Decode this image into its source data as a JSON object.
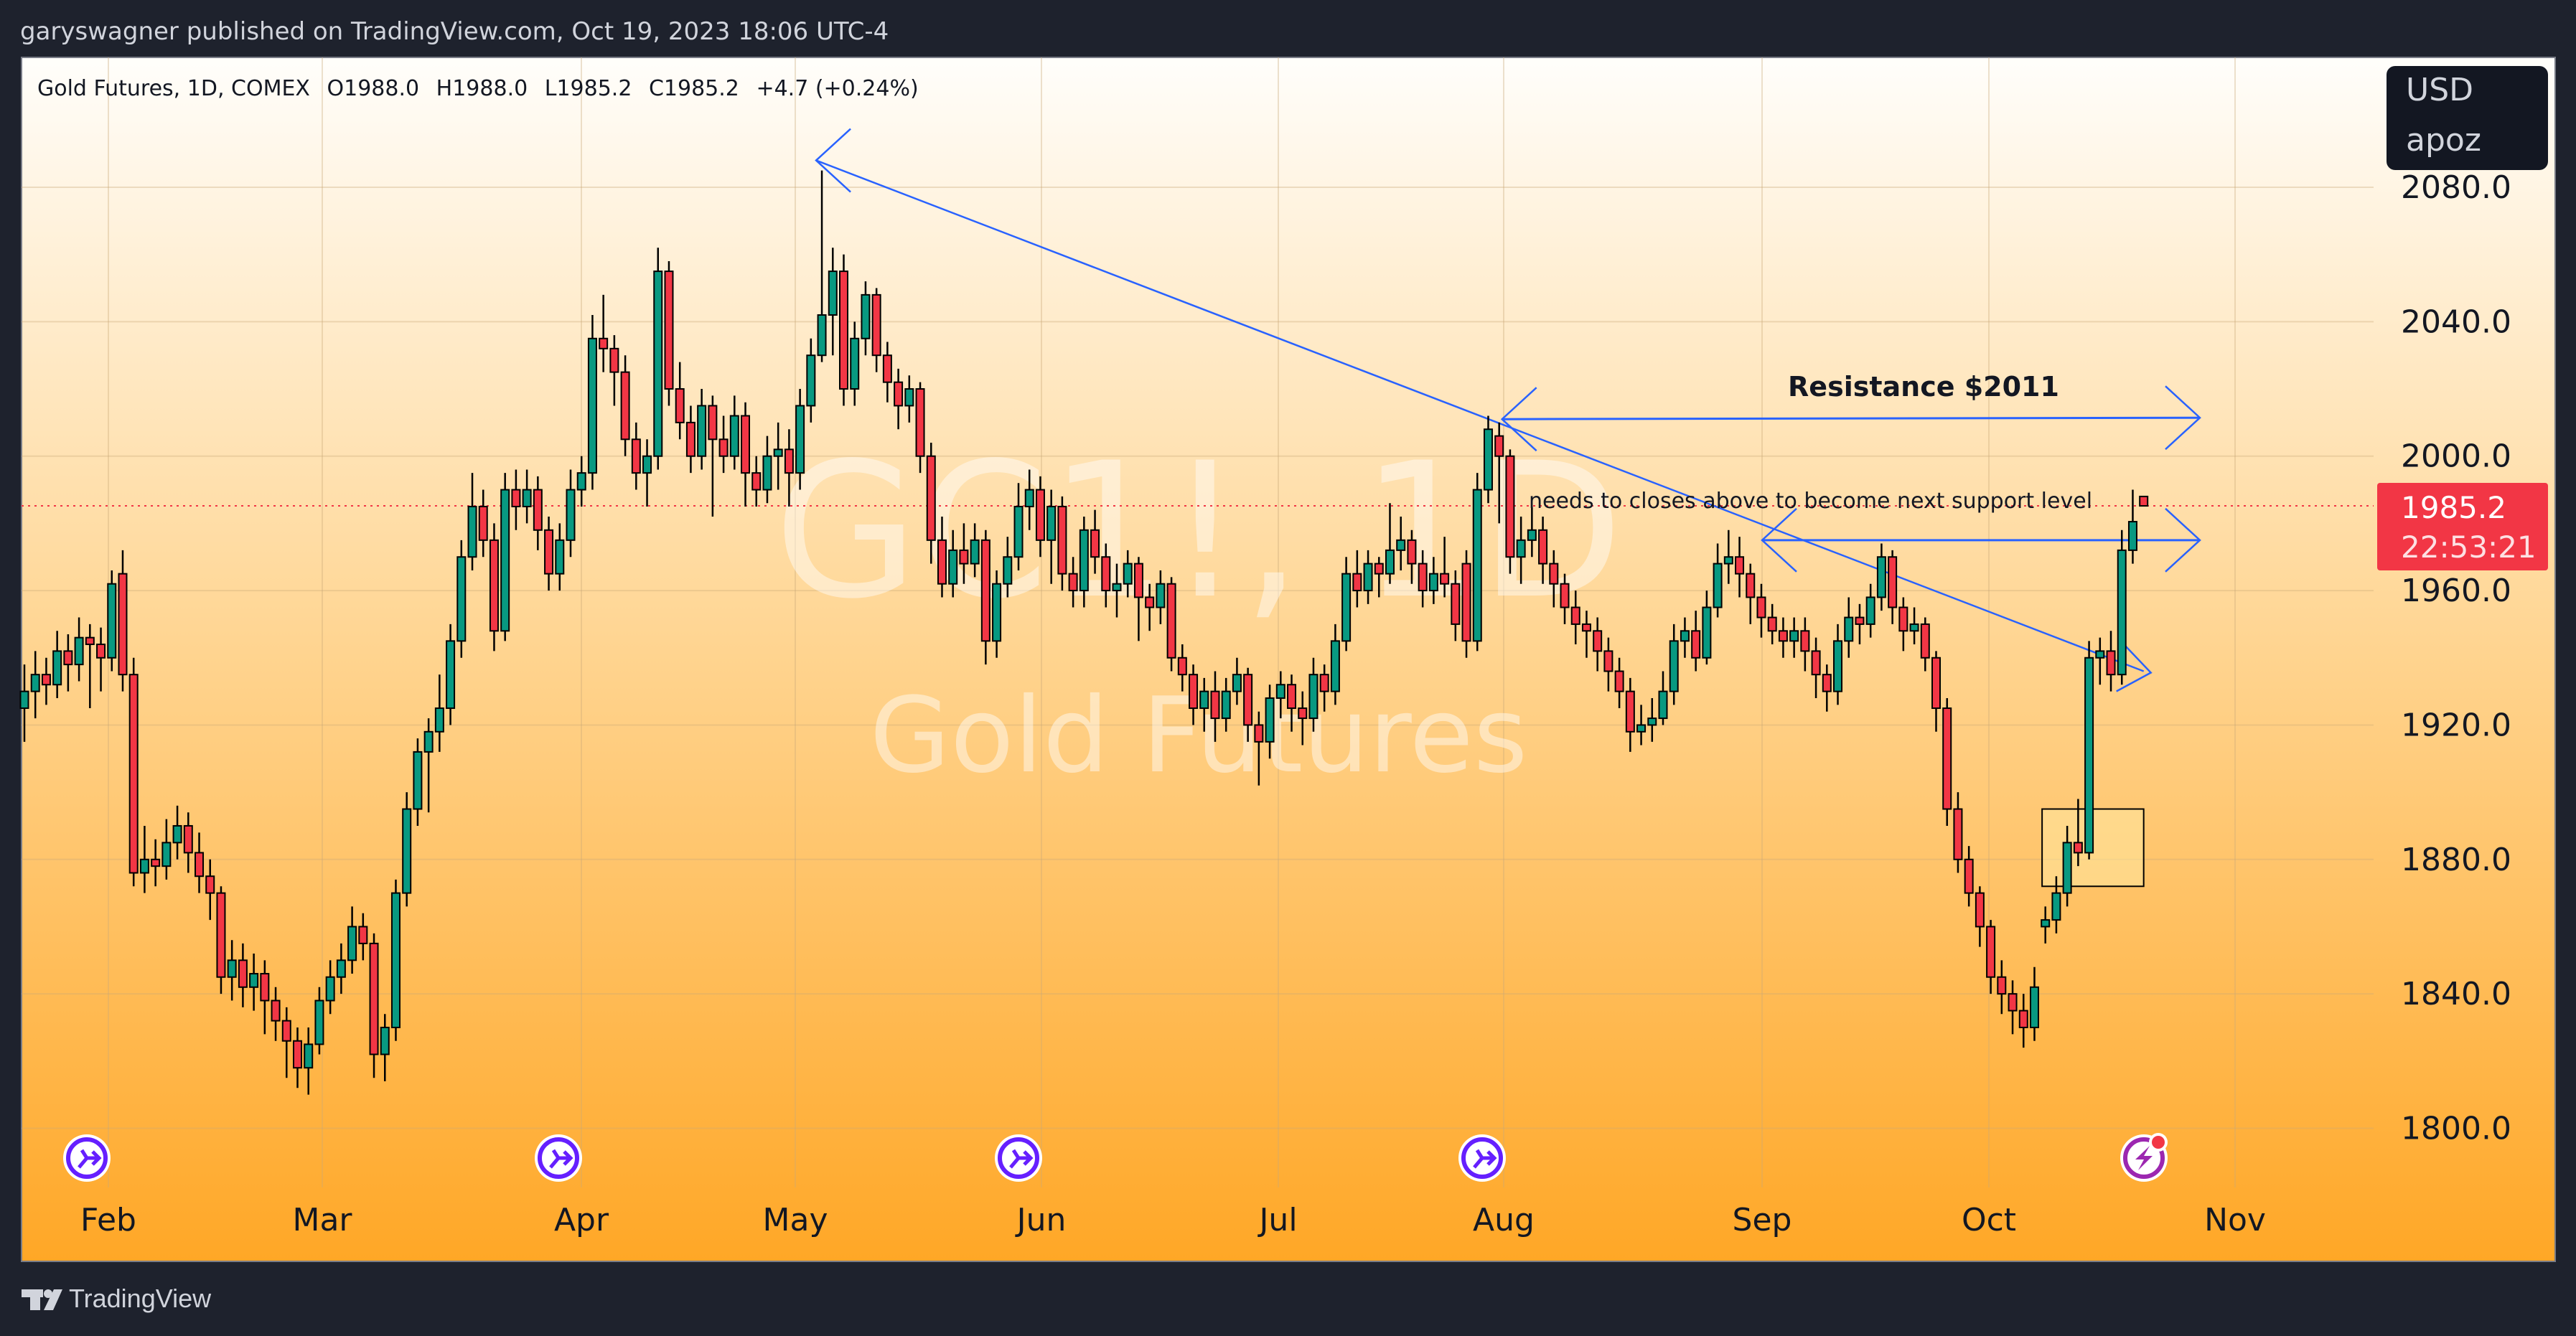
{
  "header": {
    "published_by": "garyswagner published on TradingView.com, Oct 19, 2023 18:06 UTC-4"
  },
  "legend": {
    "symbol": "Gold Futures, 1D, COMEX",
    "open": "O1988.0",
    "high": "H1988.0",
    "low": "L1985.2",
    "close": "C1985.2",
    "change": "+4.7 (+0.24%)"
  },
  "currency_box": {
    "currency": "USD",
    "unit": "apoz"
  },
  "price_label": {
    "price": "1985.2",
    "countdown": "22:53:21",
    "color": "#f23645"
  },
  "watermark": {
    "ticker": "GC1!, 1D",
    "name": "Gold Futures"
  },
  "annotations": {
    "resistance": "Resistance $2011",
    "note": "needs to closes above to become next support level",
    "line_color": "#2962ff"
  },
  "footer": {
    "brand": "TradingView"
  },
  "event_icons": [
    "dividend-arrow-icon",
    "dividend-arrow-icon",
    "dividend-arrow-icon",
    "dividend-arrow-icon",
    "earnings-lightning-icon"
  ],
  "chart_data": {
    "type": "candlestick",
    "title": "Gold Futures, 1D, COMEX",
    "up_color": "#089981",
    "down_color": "#f23645",
    "y_ticks": [
      "2080.0",
      "2040.0",
      "2000.0",
      "1960.0",
      "1920.0",
      "1880.0",
      "1840.0",
      "1800.0"
    ],
    "ylim": [
      1780,
      2100
    ],
    "x_ticks": [
      "Feb",
      "Mar",
      "Apr",
      "May",
      "Jun",
      "Jul",
      "Aug",
      "Sep",
      "Oct",
      "Nov"
    ],
    "last_price": 1985.2,
    "resistance_level": 2011,
    "grid": true,
    "ohlc": [
      [
        1925,
        1938,
        1915,
        1930
      ],
      [
        1930,
        1942,
        1922,
        1935
      ],
      [
        1935,
        1940,
        1926,
        1932
      ],
      [
        1932,
        1948,
        1928,
        1942
      ],
      [
        1942,
        1947,
        1930,
        1938
      ],
      [
        1938,
        1952,
        1933,
        1946
      ],
      [
        1946,
        1950,
        1925,
        1944
      ],
      [
        1944,
        1949,
        1930,
        1940
      ],
      [
        1940,
        1966,
        1936,
        1962
      ],
      [
        1965,
        1972,
        1930,
        1935
      ],
      [
        1935,
        1940,
        1872,
        1876
      ],
      [
        1876,
        1890,
        1870,
        1880
      ],
      [
        1880,
        1886,
        1872,
        1878
      ],
      [
        1878,
        1892,
        1874,
        1885
      ],
      [
        1885,
        1896,
        1880,
        1890
      ],
      [
        1890,
        1894,
        1876,
        1882
      ],
      [
        1882,
        1888,
        1870,
        1875
      ],
      [
        1875,
        1880,
        1862,
        1870
      ],
      [
        1870,
        1872,
        1840,
        1845
      ],
      [
        1845,
        1856,
        1838,
        1850
      ],
      [
        1850,
        1855,
        1836,
        1842
      ],
      [
        1842,
        1852,
        1835,
        1846
      ],
      [
        1846,
        1850,
        1828,
        1838
      ],
      [
        1838,
        1842,
        1826,
        1832
      ],
      [
        1832,
        1836,
        1815,
        1826
      ],
      [
        1826,
        1830,
        1812,
        1818
      ],
      [
        1818,
        1830,
        1810,
        1825
      ],
      [
        1825,
        1842,
        1822,
        1838
      ],
      [
        1838,
        1850,
        1834,
        1845
      ],
      [
        1845,
        1855,
        1840,
        1850
      ],
      [
        1850,
        1866,
        1846,
        1860
      ],
      [
        1860,
        1864,
        1850,
        1855
      ],
      [
        1855,
        1858,
        1815,
        1822
      ],
      [
        1822,
        1834,
        1814,
        1830
      ],
      [
        1830,
        1874,
        1826,
        1870
      ],
      [
        1870,
        1900,
        1866,
        1895
      ],
      [
        1895,
        1916,
        1890,
        1912
      ],
      [
        1912,
        1922,
        1894,
        1918
      ],
      [
        1918,
        1935,
        1912,
        1925
      ],
      [
        1925,
        1950,
        1920,
        1945
      ],
      [
        1945,
        1975,
        1940,
        1970
      ],
      [
        1970,
        1995,
        1966,
        1985
      ],
      [
        1985,
        1990,
        1970,
        1975
      ],
      [
        1975,
        1980,
        1942,
        1948
      ],
      [
        1948,
        1995,
        1945,
        1990
      ],
      [
        1990,
        1996,
        1978,
        1985
      ],
      [
        1985,
        1996,
        1980,
        1990
      ],
      [
        1990,
        1994,
        1972,
        1978
      ],
      [
        1978,
        1982,
        1960,
        1965
      ],
      [
        1965,
        1980,
        1960,
        1975
      ],
      [
        1975,
        1996,
        1970,
        1990
      ],
      [
        1990,
        2000,
        1985,
        1995
      ],
      [
        1995,
        2042,
        1990,
        2035
      ],
      [
        2035,
        2048,
        2025,
        2032
      ],
      [
        2032,
        2036,
        2015,
        2025
      ],
      [
        2025,
        2030,
        2000,
        2005
      ],
      [
        2005,
        2010,
        1990,
        1995
      ],
      [
        1995,
        2005,
        1985,
        2000
      ],
      [
        2000,
        2062,
        1996,
        2055
      ],
      [
        2055,
        2058,
        2015,
        2020
      ],
      [
        2020,
        2028,
        2005,
        2010
      ],
      [
        2010,
        2015,
        1995,
        2000
      ],
      [
        2000,
        2020,
        1996,
        2015
      ],
      [
        2015,
        2018,
        1982,
        2005
      ],
      [
        2005,
        2012,
        1995,
        2000
      ],
      [
        2000,
        2018,
        1996,
        2012
      ],
      [
        2012,
        2016,
        1985,
        1995
      ],
      [
        1995,
        2000,
        1985,
        1990
      ],
      [
        1990,
        2006,
        1986,
        2000
      ],
      [
        2000,
        2010,
        1990,
        2002
      ],
      [
        2002,
        2008,
        1985,
        1995
      ],
      [
        1995,
        2020,
        1990,
        2015
      ],
      [
        2015,
        2035,
        2010,
        2030
      ],
      [
        2030,
        2085,
        2028,
        2042
      ],
      [
        2042,
        2062,
        2030,
        2055
      ],
      [
        2055,
        2060,
        2015,
        2020
      ],
      [
        2020,
        2040,
        2015,
        2035
      ],
      [
        2035,
        2052,
        2030,
        2048
      ],
      [
        2048,
        2050,
        2025,
        2030
      ],
      [
        2030,
        2034,
        2016,
        2022
      ],
      [
        2022,
        2026,
        2008,
        2015
      ],
      [
        2015,
        2024,
        2010,
        2020
      ],
      [
        2020,
        2022,
        1995,
        2000
      ],
      [
        2000,
        2004,
        1968,
        1975
      ],
      [
        1975,
        1982,
        1958,
        1962
      ],
      [
        1962,
        1978,
        1958,
        1972
      ],
      [
        1972,
        1980,
        1962,
        1968
      ],
      [
        1968,
        1980,
        1964,
        1975
      ],
      [
        1975,
        1978,
        1938,
        1945
      ],
      [
        1945,
        1966,
        1940,
        1962
      ],
      [
        1962,
        1976,
        1958,
        1970
      ],
      [
        1970,
        1992,
        1966,
        1985
      ],
      [
        1985,
        1996,
        1978,
        1990
      ],
      [
        1990,
        1994,
        1970,
        1975
      ],
      [
        1975,
        1990,
        1962,
        1985
      ],
      [
        1985,
        1988,
        1960,
        1965
      ],
      [
        1965,
        1970,
        1955,
        1960
      ],
      [
        1960,
        1982,
        1955,
        1978
      ],
      [
        1978,
        1984,
        1965,
        1970
      ],
      [
        1970,
        1974,
        1955,
        1960
      ],
      [
        1960,
        1968,
        1952,
        1962
      ],
      [
        1962,
        1972,
        1958,
        1968
      ],
      [
        1968,
        1970,
        1945,
        1958
      ],
      [
        1958,
        1962,
        1948,
        1955
      ],
      [
        1955,
        1966,
        1950,
        1962
      ],
      [
        1962,
        1964,
        1936,
        1940
      ],
      [
        1940,
        1944,
        1930,
        1935
      ],
      [
        1935,
        1938,
        1920,
        1925
      ],
      [
        1925,
        1934,
        1918,
        1930
      ],
      [
        1930,
        1936,
        1915,
        1922
      ],
      [
        1922,
        1934,
        1918,
        1930
      ],
      [
        1930,
        1940,
        1926,
        1935
      ],
      [
        1935,
        1937,
        1915,
        1920
      ],
      [
        1920,
        1924,
        1902,
        1915
      ],
      [
        1915,
        1932,
        1910,
        1928
      ],
      [
        1928,
        1936,
        1922,
        1932
      ],
      [
        1932,
        1935,
        1918,
        1925
      ],
      [
        1925,
        1930,
        1914,
        1922
      ],
      [
        1922,
        1940,
        1918,
        1935
      ],
      [
        1935,
        1938,
        1924,
        1930
      ],
      [
        1930,
        1950,
        1926,
        1945
      ],
      [
        1945,
        1970,
        1942,
        1965
      ],
      [
        1965,
        1972,
        1955,
        1960
      ],
      [
        1960,
        1972,
        1956,
        1968
      ],
      [
        1968,
        1970,
        1958,
        1965
      ],
      [
        1965,
        1986,
        1962,
        1972
      ],
      [
        1972,
        1982,
        1966,
        1975
      ],
      [
        1975,
        1978,
        1962,
        1968
      ],
      [
        1968,
        1972,
        1955,
        1960
      ],
      [
        1960,
        1970,
        1956,
        1965
      ],
      [
        1965,
        1976,
        1958,
        1962
      ],
      [
        1962,
        1966,
        1945,
        1950
      ],
      [
        1968,
        1972,
        1940,
        1945
      ],
      [
        1945,
        1995,
        1942,
        1990
      ],
      [
        1990,
        2012,
        1986,
        2008
      ],
      [
        2006,
        2010,
        1980,
        2000
      ],
      [
        2000,
        2002,
        1965,
        1970
      ],
      [
        1970,
        1982,
        1962,
        1975
      ],
      [
        1975,
        1985,
        1970,
        1978
      ],
      [
        1978,
        1982,
        1962,
        1968
      ],
      [
        1968,
        1972,
        1955,
        1962
      ],
      [
        1962,
        1965,
        1950,
        1955
      ],
      [
        1955,
        1960,
        1944,
        1950
      ],
      [
        1950,
        1954,
        1940,
        1948
      ],
      [
        1948,
        1952,
        1936,
        1942
      ],
      [
        1942,
        1946,
        1930,
        1936
      ],
      [
        1936,
        1940,
        1925,
        1930
      ],
      [
        1930,
        1934,
        1912,
        1918
      ],
      [
        1918,
        1926,
        1914,
        1920
      ],
      [
        1920,
        1928,
        1915,
        1922
      ],
      [
        1922,
        1936,
        1920,
        1930
      ],
      [
        1930,
        1950,
        1926,
        1945
      ],
      [
        1945,
        1952,
        1940,
        1948
      ],
      [
        1948,
        1954,
        1936,
        1940
      ],
      [
        1940,
        1960,
        1938,
        1955
      ],
      [
        1955,
        1974,
        1952,
        1968
      ],
      [
        1968,
        1978,
        1962,
        1970
      ],
      [
        1970,
        1976,
        1958,
        1965
      ],
      [
        1965,
        1968,
        1950,
        1958
      ],
      [
        1958,
        1962,
        1946,
        1952
      ],
      [
        1952,
        1956,
        1944,
        1948
      ],
      [
        1948,
        1952,
        1940,
        1945
      ],
      [
        1945,
        1952,
        1940,
        1948
      ],
      [
        1948,
        1952,
        1936,
        1942
      ],
      [
        1942,
        1946,
        1928,
        1935
      ],
      [
        1935,
        1938,
        1924,
        1930
      ],
      [
        1930,
        1950,
        1926,
        1945
      ],
      [
        1945,
        1958,
        1940,
        1952
      ],
      [
        1952,
        1956,
        1944,
        1950
      ],
      [
        1950,
        1962,
        1946,
        1958
      ],
      [
        1958,
        1974,
        1954,
        1970
      ],
      [
        1970,
        1972,
        1950,
        1955
      ],
      [
        1955,
        1958,
        1942,
        1948
      ],
      [
        1948,
        1955,
        1944,
        1950
      ],
      [
        1950,
        1952,
        1936,
        1940
      ],
      [
        1940,
        1942,
        1918,
        1925
      ],
      [
        1925,
        1928,
        1890,
        1895
      ],
      [
        1895,
        1900,
        1876,
        1880
      ],
      [
        1880,
        1884,
        1866,
        1870
      ],
      [
        1870,
        1872,
        1854,
        1860
      ],
      [
        1860,
        1862,
        1840,
        1845
      ],
      [
        1845,
        1850,
        1834,
        1840
      ],
      [
        1840,
        1844,
        1828,
        1835
      ],
      [
        1835,
        1840,
        1824,
        1830
      ],
      [
        1830,
        1848,
        1826,
        1842
      ],
      [
        1860,
        1866,
        1855,
        1862
      ],
      [
        1862,
        1875,
        1858,
        1870
      ],
      [
        1870,
        1890,
        1866,
        1885
      ],
      [
        1885,
        1898,
        1878,
        1882
      ],
      [
        1882,
        1945,
        1880,
        1940
      ],
      [
        1940,
        1946,
        1932,
        1942
      ],
      [
        1942,
        1948,
        1930,
        1935
      ],
      [
        1935,
        1978,
        1932,
        1972
      ],
      [
        1972,
        1990,
        1968,
        1980.5
      ],
      [
        1988,
        1988,
        1985.2,
        1985.2
      ]
    ]
  }
}
